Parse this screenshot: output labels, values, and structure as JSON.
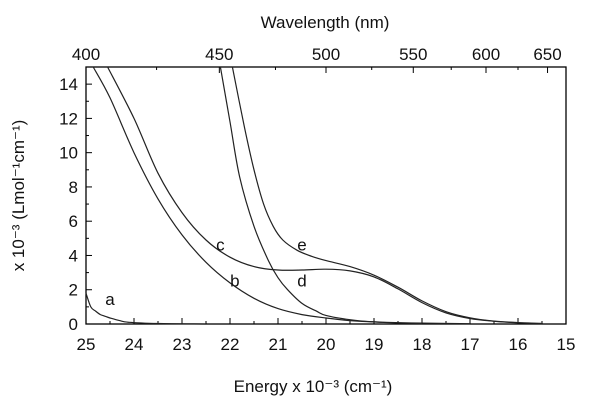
{
  "chart_data": {
    "type": "line",
    "title": "",
    "xlabel": "Energy x 10⁻³ (cm⁻¹)",
    "ylabel": "x 10⁻³ (Lmol⁻¹cm⁻¹)",
    "top_axis_label": "Wavelength (nm)",
    "xlim": [
      25,
      15
    ],
    "ylim": [
      0,
      15
    ],
    "x_ticks": [
      25,
      24,
      23,
      22,
      21,
      20,
      19,
      18,
      17,
      16,
      15
    ],
    "y_ticks": [
      0,
      2,
      4,
      6,
      8,
      10,
      12,
      14
    ],
    "top_ticks_nm": [
      400,
      450,
      500,
      550,
      600,
      650
    ],
    "grid": false,
    "series": [
      {
        "name": "a",
        "x": [
          25.0,
          24.9,
          24.8,
          24.7,
          24.6,
          24.5,
          24.3,
          24.1,
          23.5,
          22.5
        ],
        "y": [
          1.8,
          1.0,
          0.75,
          0.55,
          0.45,
          0.35,
          0.2,
          0.1,
          0.03,
          0.0
        ]
      },
      {
        "name": "b",
        "x": [
          24.85,
          24.5,
          24.0,
          23.5,
          23.0,
          22.5,
          22.0,
          21.5,
          21.0,
          20.5,
          20.0,
          19.5,
          19.0,
          18.0,
          17.0
        ],
        "y": [
          15.0,
          13.2,
          10.0,
          7.3,
          5.2,
          3.6,
          2.4,
          1.5,
          0.9,
          0.55,
          0.35,
          0.2,
          0.12,
          0.05,
          0.02
        ]
      },
      {
        "name": "c",
        "x": [
          24.55,
          24.0,
          23.5,
          23.0,
          22.5,
          22.0,
          21.5,
          21.0,
          20.5,
          20.0,
          19.5,
          19.0,
          18.5,
          18.0,
          17.5,
          17.0,
          16.5,
          16.0,
          15.5
        ],
        "y": [
          15.0,
          12.0,
          8.8,
          6.5,
          4.9,
          3.9,
          3.35,
          3.15,
          3.15,
          3.2,
          3.1,
          2.75,
          2.05,
          1.25,
          0.65,
          0.32,
          0.16,
          0.07,
          0.03
        ]
      },
      {
        "name": "d",
        "x": [
          22.2,
          22.0,
          21.8,
          21.5,
          21.2,
          21.0,
          20.8,
          20.5,
          20.2,
          20.0,
          19.5,
          19.0,
          18.5,
          18.0
        ],
        "y": [
          15.0,
          11.8,
          8.6,
          5.7,
          3.7,
          2.7,
          2.0,
          1.2,
          0.75,
          0.5,
          0.25,
          0.12,
          0.06,
          0.03
        ]
      },
      {
        "name": "e",
        "x": [
          21.95,
          21.7,
          21.5,
          21.3,
          21.1,
          20.9,
          20.6,
          20.3,
          20.0,
          19.5,
          19.0,
          18.5,
          18.0,
          17.5,
          17.0,
          16.5,
          16.0,
          15.5
        ],
        "y": [
          15.0,
          11.5,
          9.0,
          7.0,
          5.7,
          4.9,
          4.3,
          3.95,
          3.7,
          3.35,
          2.85,
          2.15,
          1.35,
          0.72,
          0.36,
          0.17,
          0.08,
          0.03
        ]
      }
    ],
    "curve_labels": [
      {
        "text": "a",
        "x": 24.5,
        "y": 1.1
      },
      {
        "text": "b",
        "x": 21.9,
        "y": 2.2
      },
      {
        "text": "c",
        "x": 22.2,
        "y": 4.3
      },
      {
        "text": "d",
        "x": 20.5,
        "y": 2.2
      },
      {
        "text": "e",
        "x": 20.5,
        "y": 4.3
      }
    ],
    "colors": {
      "line": "#222222",
      "axis": "#000000"
    }
  }
}
